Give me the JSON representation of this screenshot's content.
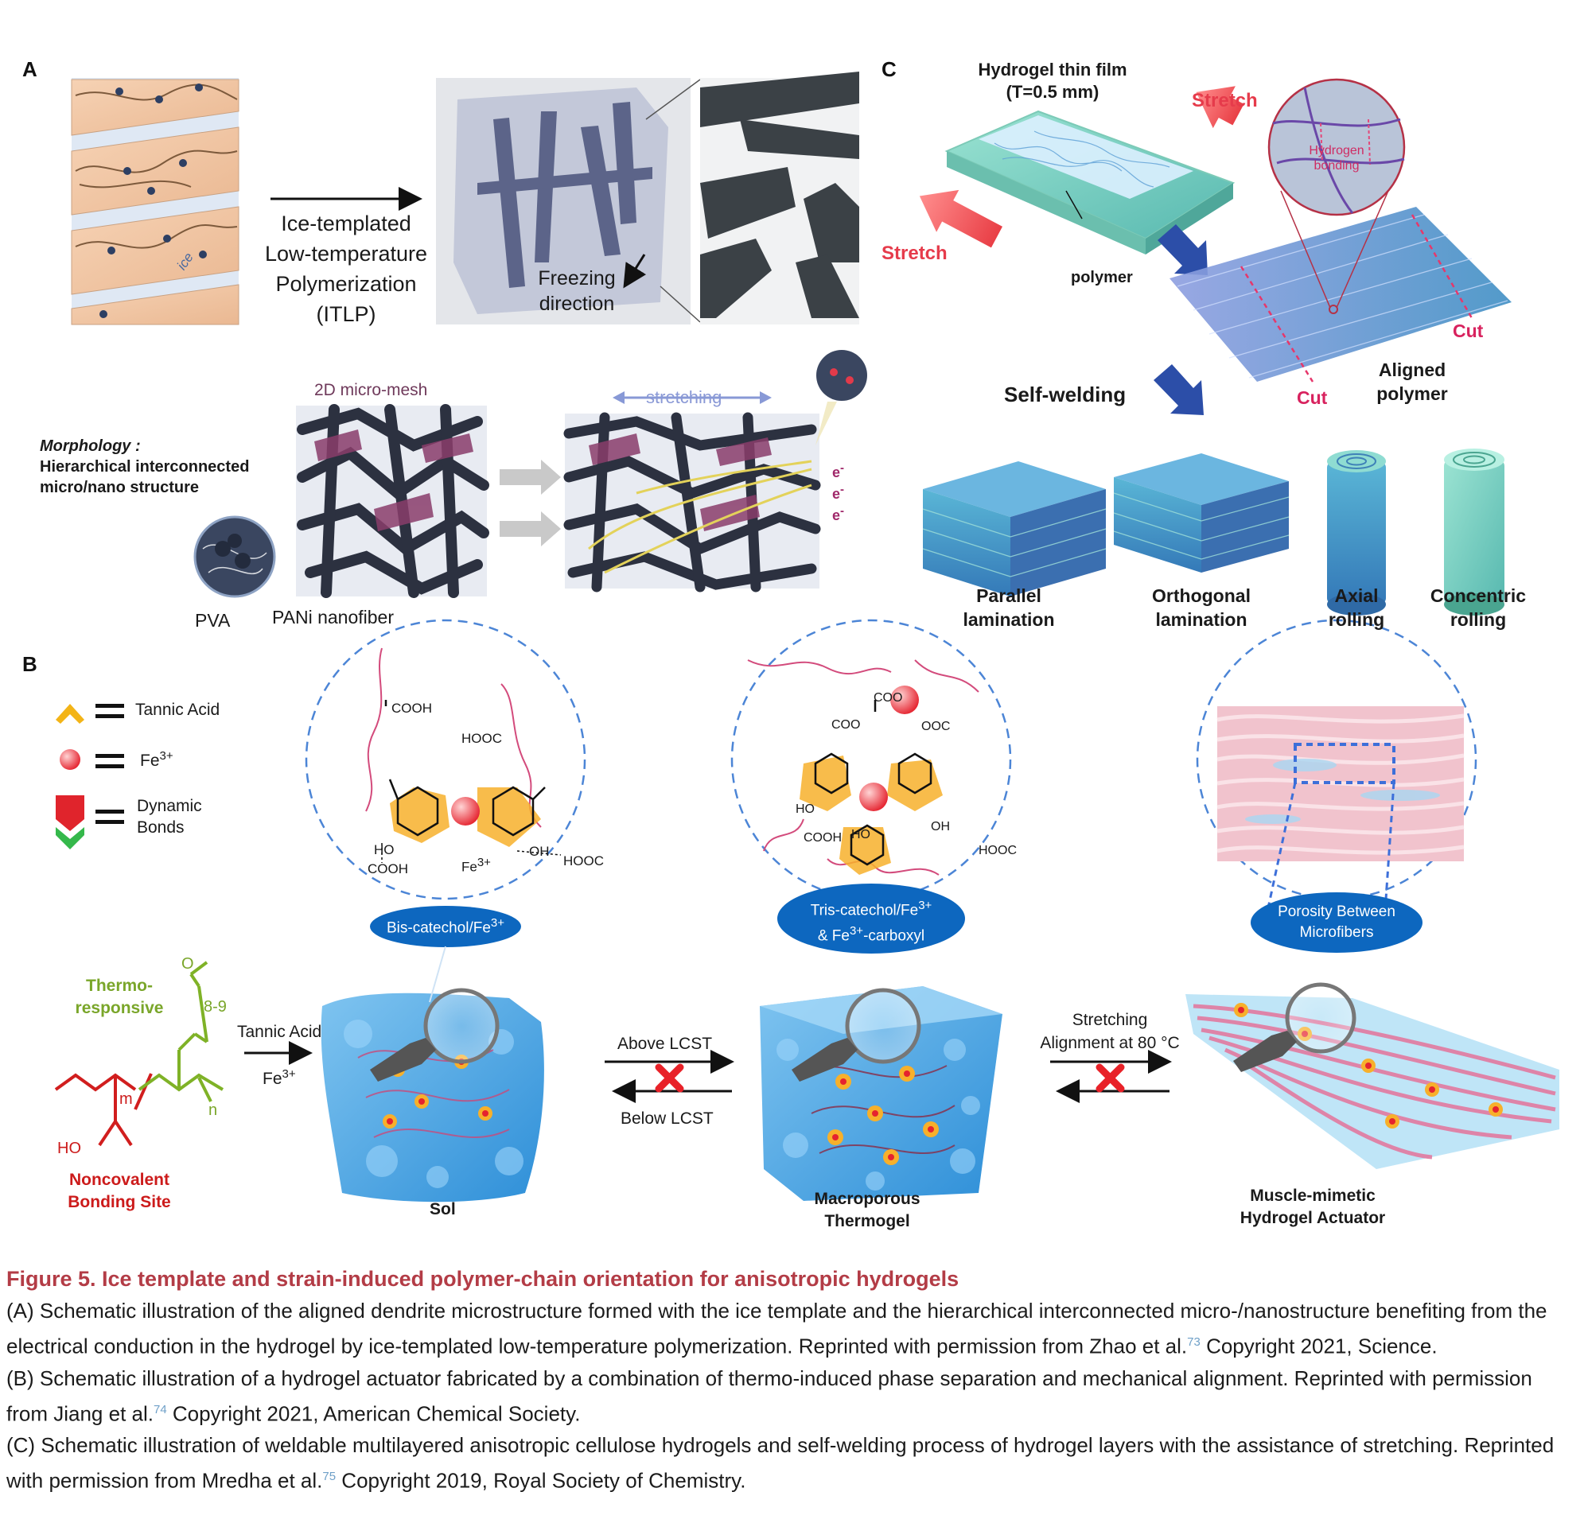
{
  "panels": {
    "a": {
      "letter": "A",
      "itlp_label_lines": [
        "Ice-templated",
        "Low-temperature",
        "Polymerization",
        "(ITLP)"
      ],
      "ice_word": "ice",
      "freezing_lines": [
        "Freezing",
        "direction"
      ],
      "micro_mesh": "2D micro-mesh",
      "stretching": "stretching",
      "morphology_heading": "Morphology :",
      "morphology_lines": [
        "Hierarchical interconnected",
        "micro/nano structure"
      ],
      "pva": "PVA",
      "pani": "PANi nanofiber",
      "electron": "e"
    },
    "b": {
      "letter": "B",
      "legend": {
        "tannic_acid": "Tannic Acid",
        "fe3": "Fe",
        "fe3_sup": "3+",
        "dynamic_bonds_lines": [
          "Dynamic",
          "Bonds"
        ]
      },
      "chem1": {
        "cooh_top": "COOH",
        "hooc": "HOOC",
        "ho": "HO",
        "cooh_bottom": "COOH",
        "fe_label": "Fe",
        "fe_sup": "3+",
        "oh": "OH",
        "hooc_right": "HOOC"
      },
      "chem2": {
        "coo_top": "COO",
        "coo_left": "COO",
        "ooc": "OOC",
        "ho": "HO",
        "cooh": "COOH",
        "ho2": "HO",
        "oh": "OH",
        "hooc": "HOOC"
      },
      "badge_bis": "Bis-catechol/Fe",
      "badge_bis_sup": "3+",
      "badge_tris_line1": "Tris-catechol/Fe",
      "badge_tris_line1_sup": "3+",
      "badge_tris_line2_pre": "& Fe",
      "badge_tris_line2_sup": "3+",
      "badge_tris_line2_post": "-carboxyl",
      "badge_porosity_lines": [
        "Porosity Between",
        "Microfibers"
      ],
      "thermo_lines": [
        "Thermo-",
        "responsive"
      ],
      "repeat_8_9": "8-9",
      "sub_m": "m",
      "sub_n": "n",
      "ho_group": "HO",
      "o_group": "O",
      "noncovalent_lines": [
        "Noncovalent",
        "Bonding Site"
      ],
      "tannic_arrow_label": "Tannic Acid",
      "fe_arrow_label": "Fe",
      "fe_arrow_sup": "3+",
      "above_lcst": "Above LCST",
      "below_lcst": "Below LCST",
      "stretching_lines": [
        "Stretching",
        "Alignment at 80 °C"
      ],
      "sol": "Sol",
      "thermogel_lines": [
        "Macroporous",
        "Thermogel"
      ],
      "actuator_lines": [
        "Muscle-mimetic",
        "Hydrogel Actuator"
      ]
    },
    "c": {
      "letter": "C",
      "film_lines": [
        "Hydrogel thin film",
        "(T=0.5 mm)"
      ],
      "stretch_right": "Stretch",
      "stretch_left": "Stretch",
      "polymer": "polymer",
      "hydrogen_bonding_lines": [
        "Hydrogen",
        "bonding"
      ],
      "cut_right": "Cut",
      "cut_left": "Cut",
      "aligned_lines": [
        "Aligned",
        "polymer"
      ],
      "self_welding": "Self-welding",
      "parallel_lines": [
        "Parallel",
        "lamination"
      ],
      "orthogonal_lines": [
        "Orthogonal",
        "lamination"
      ],
      "axial_lines": [
        "Axial",
        "rolling"
      ],
      "concentric_lines": [
        "Concentric",
        "rolling"
      ]
    }
  },
  "caption": {
    "title": "Figure 5.  Ice template and strain-induced polymer-chain orientation for anisotropic hydrogels",
    "a_text": "(A) Schematic illustration of the aligned dendrite microstructure formed with the ice template and the hierarchical interconnected micro-/nanostructure benefiting from the electrical conduction in the hydrogel by ice-templated low-temperature polymerization. Reprinted with permission from Zhao et al.",
    "a_ref": "73",
    "a_tail": " Copyright 2021, Science.",
    "b_text": "(B) Schematic illustration of a hydrogel actuator fabricated by a combination of thermo-induced phase separation and mechanical alignment. Reprinted with permission from Jiang et al.",
    "b_ref": "74",
    "b_tail": " Copyright 2021, American Chemical Society.",
    "c_text": "(C) Schematic illustration of weldable multilayered anisotropic cellulose hydrogels and self-welding process of hydrogel layers with the assistance of stretching. Reprinted with permission from Mredha et al.",
    "c_ref": "75",
    "c_tail": " Copyright 2019, Royal Society of Chemistry."
  }
}
